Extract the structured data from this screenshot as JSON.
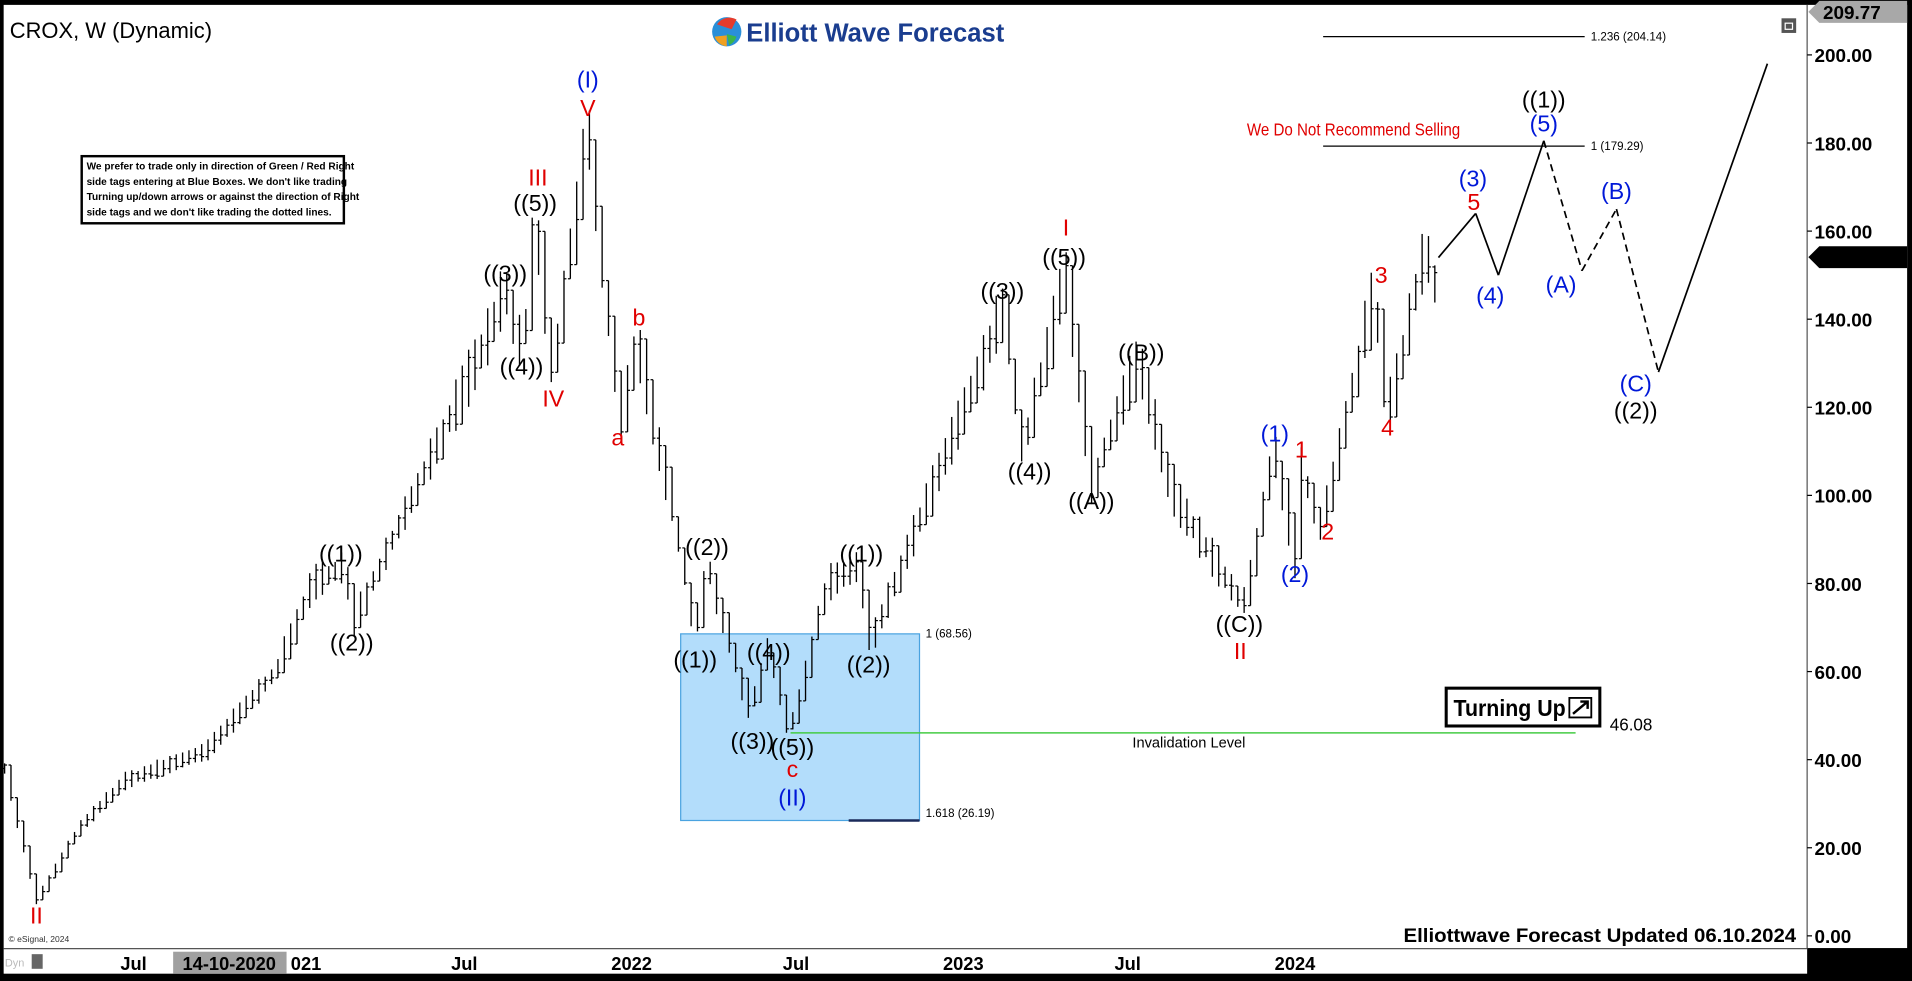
{
  "header": {
    "title": "CROX, W (Dynamic)",
    "brand": "Elliott Wave Forecast",
    "notice": [
      "We prefer to trade only in direction of Green / Red Right",
      "side tags entering at Blue Boxes. We don't like trading",
      "Turning up/down arrows or against the direction of Right",
      "side tags and we don't like trading the dotted lines."
    ],
    "recommendation": "We Do Not Recommend Selling",
    "updated": "Elliottwave Forecast Updated 06.10.2024",
    "copyright": "© eSignal, 2024",
    "dyn_label": "Dyn",
    "turning_up": "Turning Up",
    "invalidation_label": "Invalidation Level",
    "crosshair_date": "14-10-2020"
  },
  "colors": {
    "red": "#e00000",
    "blue": "#0018d8",
    "black": "#000000",
    "box": "#b3ddfb",
    "invalidation": "#44cc44",
    "brand": "#1a3d8f"
  },
  "chart_data": {
    "type": "ohlc-bar",
    "interval": "weekly",
    "ylim": [
      0,
      210
    ],
    "yticks": [
      0,
      20,
      40,
      60,
      80,
      100,
      120,
      140,
      160,
      180,
      200
    ],
    "ytick_labels": [
      "0.00",
      "20.00",
      "40.00",
      "60.00",
      "80.00",
      "100.00",
      "120.00",
      "140.00",
      "160.00",
      "180.00",
      "200.00"
    ],
    "xtick_labels": [
      {
        "date": "2020-07-01",
        "label": "Jul"
      },
      {
        "date": "2021-01-01",
        "label": "021"
      },
      {
        "date": "2021-07-01",
        "label": "Jul"
      },
      {
        "date": "2022-01-01",
        "label": "2022"
      },
      {
        "date": "2022-07-01",
        "label": "Jul"
      },
      {
        "date": "2023-01-01",
        "label": "2023"
      },
      {
        "date": "2023-07-01",
        "label": "Jul"
      },
      {
        "date": "2024-01-01",
        "label": "2024"
      }
    ],
    "high_tag": "209.77",
    "last_price": "154.08",
    "price_path": [
      [
        "2020-02-10",
        38
      ],
      [
        "2020-03-16",
        8
      ],
      [
        "2020-05-01",
        24
      ],
      [
        "2020-06-20",
        35
      ],
      [
        "2020-09-20",
        42
      ],
      [
        "2020-12-05",
        60
      ],
      [
        "2021-01-15",
        80
      ],
      [
        "2021-02-20",
        84
      ],
      [
        "2021-03-01",
        71
      ],
      [
        "2021-05-15",
        104
      ],
      [
        "2021-07-25",
        135
      ],
      [
        "2021-08-15",
        147
      ],
      [
        "2021-09-04",
        132
      ],
      [
        "2021-09-17",
        163
      ],
      [
        "2021-10-07",
        127
      ],
      [
        "2021-11-14",
        184
      ],
      [
        "2021-12-20",
        115
      ],
      [
        "2022-01-06",
        136
      ],
      [
        "2022-02-25",
        86
      ],
      [
        "2022-03-12",
        68
      ],
      [
        "2022-03-25",
        85
      ],
      [
        "2022-05-11",
        50
      ],
      [
        "2022-05-31",
        66
      ],
      [
        "2022-06-24",
        46
      ],
      [
        "2022-08-05",
        80
      ],
      [
        "2022-09-08",
        84
      ],
      [
        "2022-09-21",
        66
      ],
      [
        "2022-11-25",
        100
      ],
      [
        "2023-01-25",
        131
      ],
      [
        "2023-02-13",
        143
      ],
      [
        "2023-03-08",
        110
      ],
      [
        "2023-04-24",
        151
      ],
      [
        "2023-05-22",
        102
      ],
      [
        "2023-07-13",
        131
      ],
      [
        "2023-08-20",
        100
      ],
      [
        "2023-11-05",
        75
      ],
      [
        "2023-12-10",
        110
      ],
      [
        "2024-01-01",
        85
      ],
      [
        "2024-01-08",
        106
      ],
      [
        "2024-01-30",
        93
      ],
      [
        "2024-03-28",
        147
      ],
      [
        "2024-04-12",
        118
      ],
      [
        "2024-05-25",
        157
      ],
      [
        "2024-06-01",
        145
      ],
      [
        "2024-06-07",
        154
      ]
    ],
    "projection": [
      {
        "date": "2024-06-07",
        "price": 154,
        "dashed": false
      },
      {
        "date": "2024-07-18",
        "price": 164,
        "dashed": false
      },
      {
        "date": "2024-08-12",
        "price": 150,
        "dashed": false
      },
      {
        "date": "2024-10-01",
        "price": 180.5,
        "dashed": false
      },
      {
        "date": "2024-11-12",
        "price": 151,
        "dashed": true
      },
      {
        "date": "2024-12-20",
        "price": 165,
        "dashed": true
      },
      {
        "date": "2025-02-05",
        "price": 128,
        "dashed": true
      },
      {
        "date": "2025-06-05",
        "price": 198,
        "dashed": false
      }
    ],
    "fib_levels": [
      {
        "label": "1.236 (204.14)",
        "price": 204.14,
        "from": "2024-02-01",
        "to": "2024-11-15"
      },
      {
        "label": "1 (179.29)",
        "price": 179.29,
        "from": "2024-02-01",
        "to": "2024-11-15"
      }
    ],
    "blue_box": {
      "from": "2022-02-24",
      "to": "2022-11-14",
      "top": 68.56,
      "bottom": 26.19,
      "top_label": "1 (68.56)",
      "bottom_label": "1.618 (26.19)"
    },
    "invalidation": {
      "price": 46.08,
      "label": "46.08",
      "from": "2022-06-25",
      "to": "2024-11-05"
    },
    "wave_labels": [
      {
        "t": "II",
        "c": "red",
        "d": "2020-03-16",
        "p": 4.2
      },
      {
        "t": "((1))",
        "c": "black",
        "d": "2021-02-15",
        "p": 86.4
      },
      {
        "t": "((2))",
        "c": "black",
        "d": "2021-02-27",
        "p": 66.2
      },
      {
        "t": "((3))",
        "c": "black",
        "d": "2021-08-15",
        "p": 150
      },
      {
        "t": "((4))",
        "c": "black",
        "d": "2021-09-02",
        "p": 128.8
      },
      {
        "t": "((5))",
        "c": "black",
        "d": "2021-09-17",
        "p": 166
      },
      {
        "t": "III",
        "c": "red",
        "d": "2021-09-20",
        "p": 171.7
      },
      {
        "t": "IV",
        "c": "red",
        "d": "2021-10-07",
        "p": 121.6
      },
      {
        "t": "V",
        "c": "red",
        "d": "2021-11-14",
        "p": 187.5
      },
      {
        "t": "(I)",
        "c": "blue",
        "d": "2021-11-14",
        "p": 194
      },
      {
        "t": "a",
        "c": "red",
        "d": "2021-12-17",
        "p": 112.7
      },
      {
        "t": "b",
        "c": "red",
        "d": "2022-01-09",
        "p": 140
      },
      {
        "t": "((1))",
        "c": "black",
        "d": "2022-03-12",
        "p": 62.3
      },
      {
        "t": "((2))",
        "c": "black",
        "d": "2022-03-25",
        "p": 87.8
      },
      {
        "t": "((3))",
        "c": "black",
        "d": "2022-05-14",
        "p": 43.8
      },
      {
        "t": "((4))",
        "c": "black",
        "d": "2022-06-01",
        "p": 64
      },
      {
        "t": "((5))",
        "c": "black",
        "d": "2022-06-27",
        "p": 42.4
      },
      {
        "t": "c",
        "c": "red",
        "d": "2022-06-27",
        "p": 37.4
      },
      {
        "t": "(II)",
        "c": "blue",
        "d": "2022-06-27",
        "p": 31
      },
      {
        "t": "((1))",
        "c": "black",
        "d": "2022-09-11",
        "p": 86.4
      },
      {
        "t": "((2))",
        "c": "black",
        "d": "2022-09-19",
        "p": 61.2
      },
      {
        "t": "((3))",
        "c": "black",
        "d": "2023-02-13",
        "p": 146
      },
      {
        "t": "((4))",
        "c": "black",
        "d": "2023-03-15",
        "p": 105
      },
      {
        "t": "((5))",
        "c": "black",
        "d": "2023-04-22",
        "p": 153.7
      },
      {
        "t": "I",
        "c": "red",
        "d": "2023-04-24",
        "p": 160.4
      },
      {
        "t": "((A))",
        "c": "black",
        "d": "2023-05-22",
        "p": 98.3
      },
      {
        "t": "((B))",
        "c": "black",
        "d": "2023-07-16",
        "p": 132
      },
      {
        "t": "((C))",
        "c": "black",
        "d": "2023-11-01",
        "p": 70.4
      },
      {
        "t": "II",
        "c": "red",
        "d": "2023-11-02",
        "p": 64.3
      },
      {
        "t": "(1)",
        "c": "blue",
        "d": "2023-12-10",
        "p": 113.6
      },
      {
        "t": "(2)",
        "c": "blue",
        "d": "2024-01-01",
        "p": 81.7
      },
      {
        "t": "1",
        "c": "red",
        "d": "2024-01-08",
        "p": 110
      },
      {
        "t": "2",
        "c": "red",
        "d": "2024-02-06",
        "p": 91.4
      },
      {
        "t": "3",
        "c": "red",
        "d": "2024-04-05",
        "p": 149.6
      },
      {
        "t": "4",
        "c": "red",
        "d": "2024-04-12",
        "p": 115
      },
      {
        "t": "(3)",
        "c": "blue",
        "d": "2024-07-15",
        "p": 171.5
      },
      {
        "t": "5",
        "c": "red",
        "d": "2024-07-16",
        "p": 166.2
      },
      {
        "t": "(4)",
        "c": "blue",
        "d": "2024-08-03",
        "p": 145
      },
      {
        "t": "((1))",
        "c": "black",
        "d": "2024-10-01",
        "p": 189.5
      },
      {
        "t": "(5)",
        "c": "blue",
        "d": "2024-10-01",
        "p": 184
      },
      {
        "t": "(A)",
        "c": "blue",
        "d": "2024-10-20",
        "p": 147.4
      },
      {
        "t": "(B)",
        "c": "blue",
        "d": "2024-12-20",
        "p": 168.7
      },
      {
        "t": "(C)",
        "c": "blue",
        "d": "2025-01-11",
        "p": 125
      },
      {
        "t": "((2))",
        "c": "black",
        "d": "2025-01-11",
        "p": 118.8
      }
    ]
  }
}
